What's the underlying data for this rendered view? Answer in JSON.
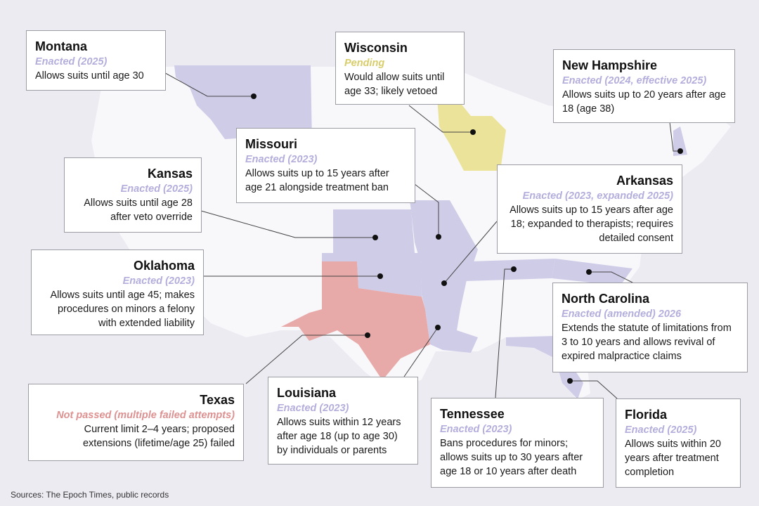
{
  "colors": {
    "background": "#ecebf2",
    "land": "#f8f8fb",
    "enacted": "#cfcce8",
    "pending": "#ebe39a",
    "not_passed": "#e8aaa8"
  },
  "states": [
    {
      "id": "montana",
      "name": "Montana",
      "status": "Enacted (2025)",
      "category": "enacted",
      "desc": "Allows suits until age 30"
    },
    {
      "id": "wisconsin",
      "name": "Wisconsin",
      "status": "Pending",
      "category": "pending",
      "desc": "Would allow suits until age 33; likely vetoed"
    },
    {
      "id": "new-hampshire",
      "name": "New Hampshire",
      "status": "Enacted (2024, effective 2025)",
      "category": "enacted",
      "desc": "Allows suits up to 20 years after age 18 (age 38)"
    },
    {
      "id": "missouri",
      "name": "Missouri",
      "status": "Enacted (2023)",
      "category": "enacted",
      "desc": "Allows suits up to 15 years after age 21 alongside treatment ban"
    },
    {
      "id": "kansas",
      "name": "Kansas",
      "status": "Enacted (2025)",
      "category": "enacted",
      "desc": "Allows suits until age 28 after veto override"
    },
    {
      "id": "arkansas",
      "name": "Arkansas",
      "status": "Enacted (2023, expanded 2025)",
      "category": "enacted",
      "desc": "Allows suits up to 15 years after age 18; expanded to therapists; requires detailed consent"
    },
    {
      "id": "oklahoma",
      "name": "Oklahoma",
      "status": "Enacted (2023)",
      "category": "enacted",
      "desc": "Allows suits until age 45; makes procedures on minors a felony with extended liability"
    },
    {
      "id": "north-carolina",
      "name": "North Carolina",
      "status": "Enacted (amended) 2026",
      "category": "enacted",
      "desc": "Extends the statute of limitations from 3 to 10 years and allows revival of expired malpractice claims"
    },
    {
      "id": "texas",
      "name": "Texas",
      "status": "Not passed (multiple failed attempts)",
      "category": "failed",
      "desc": "Current limit 2–4 years; proposed extensions (lifetime/age 25) failed"
    },
    {
      "id": "louisiana",
      "name": "Louisiana",
      "status": "Enacted (2023)",
      "category": "enacted",
      "desc": "Allows suits within 12 years after age 18 (up to age 30) by individuals or parents"
    },
    {
      "id": "tennessee",
      "name": "Tennessee",
      "status": "Enacted (2023)",
      "category": "enacted",
      "desc": "Bans procedures for minors; allows suits up to 30 years after age 18 or 10 years after death"
    },
    {
      "id": "florida",
      "name": "Florida",
      "status": "Enacted (2025)",
      "category": "enacted",
      "desc": "Allows suits within 20 years after treatment completion"
    }
  ],
  "sources": "Sources: The Epoch Times, public records"
}
